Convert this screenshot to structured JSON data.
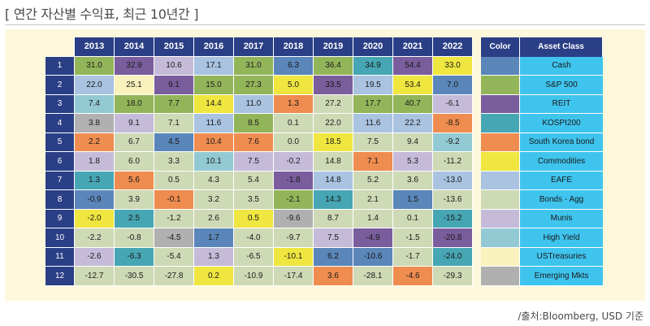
{
  "title": "[ 연간 자산별 수익표, 최근 10년간 ]",
  "source": "/출처:Bloomberg, USD 기준",
  "colors": {
    "Cash": "#5a86b9",
    "S&P 500": "#93b55a",
    "REIT": "#7a5d9d",
    "KOSPI200": "#47a6b4",
    "South Korea bond": "#ef8c4f",
    "Commodities": "#efe640",
    "EAFE": "#a9c3e1",
    "Bonds - Agg": "#ced9b5",
    "Munis": "#c5bbd9",
    "High Yield": "#93c9d2",
    "USTreasuries": "#faf2bd",
    "Emerging Mkts": "#b0b0b0"
  },
  "chart_data": {
    "type": "table",
    "years": [
      "2013",
      "2014",
      "2015",
      "2016",
      "2017",
      "2018",
      "2019",
      "2020",
      "2021",
      "2022"
    ],
    "ranks": [
      "1",
      "2",
      "3",
      "4",
      "5",
      "6",
      "7",
      "8",
      "9",
      "10",
      "11",
      "12"
    ],
    "rows": [
      [
        {
          "v": "31.0",
          "a": "S&P 500"
        },
        {
          "v": "32.9",
          "a": "REIT"
        },
        {
          "v": "10.6",
          "a": "Munis"
        },
        {
          "v": "17.1",
          "a": "EAFE"
        },
        {
          "v": "31.0",
          "a": "S&P 500"
        },
        {
          "v": "6.3",
          "a": "Cash"
        },
        {
          "v": "36.4",
          "a": "S&P 500"
        },
        {
          "v": "34.9",
          "a": "KOSPI200"
        },
        {
          "v": "54.4",
          "a": "REIT"
        },
        {
          "v": "33.0",
          "a": "Commodities"
        }
      ],
      [
        {
          "v": "22.0",
          "a": "EAFE"
        },
        {
          "v": "25.1",
          "a": "USTreasuries"
        },
        {
          "v": "9.1",
          "a": "REIT"
        },
        {
          "v": "15.0",
          "a": "S&P 500"
        },
        {
          "v": "27.3",
          "a": "S&P 500"
        },
        {
          "v": "5.0",
          "a": "Commodities"
        },
        {
          "v": "33.5",
          "a": "REIT"
        },
        {
          "v": "19.5",
          "a": "EAFE"
        },
        {
          "v": "53.4",
          "a": "Commodities"
        },
        {
          "v": "7.0",
          "a": "Cash"
        }
      ],
      [
        {
          "v": "7.4",
          "a": "High Yield"
        },
        {
          "v": "18.0",
          "a": "S&P 500"
        },
        {
          "v": "7.7",
          "a": "S&P 500"
        },
        {
          "v": "14.4",
          "a": "Commodities"
        },
        {
          "v": "11.0",
          "a": "EAFE"
        },
        {
          "v": "1.3",
          "a": "South Korea bond"
        },
        {
          "v": "27.2",
          "a": "Bonds - Agg"
        },
        {
          "v": "17.7",
          "a": "S&P 500"
        },
        {
          "v": "40.7",
          "a": "S&P 500"
        },
        {
          "v": "-6.1",
          "a": "Munis"
        }
      ],
      [
        {
          "v": "3.8",
          "a": "Emerging Mkts"
        },
        {
          "v": "9.1",
          "a": "Munis"
        },
        {
          "v": "7.1",
          "a": "Bonds - Agg"
        },
        {
          "v": "11.6",
          "a": "EAFE"
        },
        {
          "v": "8.5",
          "a": "S&P 500"
        },
        {
          "v": "0.1",
          "a": "Bonds - Agg"
        },
        {
          "v": "22.0",
          "a": "Bonds - Agg"
        },
        {
          "v": "11.6",
          "a": "EAFE"
        },
        {
          "v": "22.2",
          "a": "EAFE"
        },
        {
          "v": "-8.5",
          "a": "South Korea bond"
        }
      ],
      [
        {
          "v": "2.2",
          "a": "South Korea bond"
        },
        {
          "v": "6.7",
          "a": "Bonds - Agg"
        },
        {
          "v": "4.5",
          "a": "Cash"
        },
        {
          "v": "10.4",
          "a": "South Korea bond"
        },
        {
          "v": "7.6",
          "a": "South Korea bond"
        },
        {
          "v": "0.0",
          "a": "Bonds - Agg"
        },
        {
          "v": "18.5",
          "a": "Commodities"
        },
        {
          "v": "7.5",
          "a": "Bonds - Agg"
        },
        {
          "v": "9.4",
          "a": "Bonds - Agg"
        },
        {
          "v": "-9.2",
          "a": "High Yield"
        }
      ],
      [
        {
          "v": "1.8",
          "a": "Munis"
        },
        {
          "v": "6.0",
          "a": "Bonds - Agg"
        },
        {
          "v": "3.3",
          "a": "Bonds - Agg"
        },
        {
          "v": "10.1",
          "a": "High Yield"
        },
        {
          "v": "7.5",
          "a": "Munis"
        },
        {
          "v": "-0.2",
          "a": "Munis"
        },
        {
          "v": "14.8",
          "a": "Bonds - Agg"
        },
        {
          "v": "7.1",
          "a": "South Korea bond"
        },
        {
          "v": "5.3",
          "a": "Munis"
        },
        {
          "v": "-11.2",
          "a": "Bonds - Agg"
        }
      ],
      [
        {
          "v": "1.3",
          "a": "KOSPI200"
        },
        {
          "v": "5.6",
          "a": "South Korea bond"
        },
        {
          "v": "0.5",
          "a": "Bonds - Agg"
        },
        {
          "v": "4.3",
          "a": "Bonds - Agg"
        },
        {
          "v": "5.4",
          "a": "Bonds - Agg"
        },
        {
          "v": "-1.8",
          "a": "REIT"
        },
        {
          "v": "14.8",
          "a": "EAFE"
        },
        {
          "v": "5.2",
          "a": "Bonds - Agg"
        },
        {
          "v": "3.6",
          "a": "Bonds - Agg"
        },
        {
          "v": "-13.0",
          "a": "EAFE"
        }
      ],
      [
        {
          "v": "-0.9",
          "a": "Cash"
        },
        {
          "v": "3.9",
          "a": "Bonds - Agg"
        },
        {
          "v": "-0.1",
          "a": "South Korea bond"
        },
        {
          "v": "3.2",
          "a": "Bonds - Agg"
        },
        {
          "v": "3.5",
          "a": "Bonds - Agg"
        },
        {
          "v": "-2.1",
          "a": "S&P 500"
        },
        {
          "v": "14.3",
          "a": "KOSPI200"
        },
        {
          "v": "2.1",
          "a": "Bonds - Agg"
        },
        {
          "v": "1.5",
          "a": "Cash"
        },
        {
          "v": "-13.6",
          "a": "Bonds - Agg"
        }
      ],
      [
        {
          "v": "-2.0",
          "a": "Commodities"
        },
        {
          "v": "2.5",
          "a": "KOSPI200"
        },
        {
          "v": "-1.2",
          "a": "Bonds - Agg"
        },
        {
          "v": "2.6",
          "a": "Bonds - Agg"
        },
        {
          "v": "0.5",
          "a": "Commodities"
        },
        {
          "v": "-9.6",
          "a": "Emerging Mkts"
        },
        {
          "v": "8.7",
          "a": "Bonds - Agg"
        },
        {
          "v": "1.4",
          "a": "Bonds - Agg"
        },
        {
          "v": "0.1",
          "a": "Bonds - Agg"
        },
        {
          "v": "-15.2",
          "a": "KOSPI200"
        }
      ],
      [
        {
          "v": "-2.2",
          "a": "Bonds - Agg"
        },
        {
          "v": "-0.8",
          "a": "Bonds - Agg"
        },
        {
          "v": "-4.5",
          "a": "Emerging Mkts"
        },
        {
          "v": "1.7",
          "a": "Cash"
        },
        {
          "v": "-4.0",
          "a": "Bonds - Agg"
        },
        {
          "v": "-9.7",
          "a": "Bonds - Agg"
        },
        {
          "v": "7.5",
          "a": "Munis"
        },
        {
          "v": "-4.9",
          "a": "REIT"
        },
        {
          "v": "-1.5",
          "a": "Bonds - Agg"
        },
        {
          "v": "-20.8",
          "a": "REIT"
        }
      ],
      [
        {
          "v": "-2.6",
          "a": "Munis"
        },
        {
          "v": "-6.3",
          "a": "KOSPI200"
        },
        {
          "v": "-5.4",
          "a": "Bonds - Agg"
        },
        {
          "v": "1.3",
          "a": "Munis"
        },
        {
          "v": "-6.5",
          "a": "Bonds - Agg"
        },
        {
          "v": "-10.1",
          "a": "Commodities"
        },
        {
          "v": "6.2",
          "a": "Cash"
        },
        {
          "v": "-10.6",
          "a": "Cash"
        },
        {
          "v": "-1.7",
          "a": "Bonds - Agg"
        },
        {
          "v": "-24.0",
          "a": "KOSPI200"
        }
      ],
      [
        {
          "v": "-12.7",
          "a": "Bonds - Agg"
        },
        {
          "v": "-30.5",
          "a": "Bonds - Agg"
        },
        {
          "v": "-27.8",
          "a": "Bonds - Agg"
        },
        {
          "v": "0.2",
          "a": "Commodities"
        },
        {
          "v": "-10.9",
          "a": "Bonds - Agg"
        },
        {
          "v": "-17.4",
          "a": "Bonds - Agg"
        },
        {
          "v": "3.6",
          "a": "South Korea bond"
        },
        {
          "v": "-28.1",
          "a": "Bonds - Agg"
        },
        {
          "v": "-4.6",
          "a": "South Korea bond"
        },
        {
          "v": "-29.3",
          "a": "Bonds - Agg"
        }
      ]
    ],
    "legend": {
      "color_header": "Color",
      "asset_header": "Asset Class",
      "items": [
        "Cash",
        "S&P 500",
        "REIT",
        "KOSPI200",
        "South Korea bond",
        "Commodities",
        "EAFE",
        "Bonds - Agg",
        "Munis",
        "High Yield",
        "USTreasuries",
        "Emerging Mkts"
      ]
    }
  }
}
